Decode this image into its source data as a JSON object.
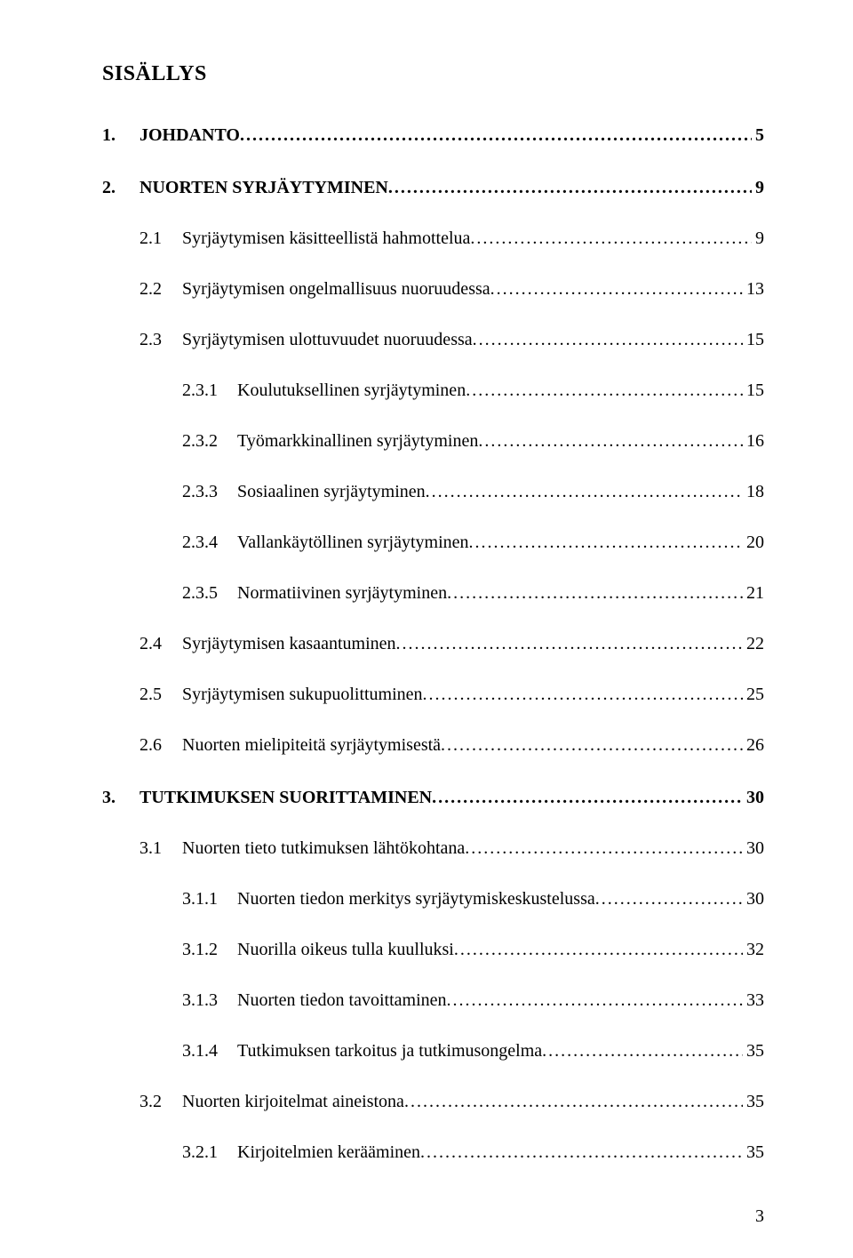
{
  "title": "SISÄLLYS",
  "pageNumber": "3",
  "entries": [
    {
      "level": 1,
      "num": "1.",
      "label": "JOHDANTO",
      "page": "5",
      "dots": true
    },
    {
      "level": 1,
      "num": "2.",
      "label": "NUORTEN SYRJÄYTYMINEN",
      "page": "9",
      "dots": true
    },
    {
      "level": 2,
      "num": "2.1",
      "label": "Syrjäytymisen käsitteellistä hahmottelua",
      "page": "9",
      "dots": true
    },
    {
      "level": 2,
      "num": "2.2",
      "label": "Syrjäytymisen ongelmallisuus nuoruudessa",
      "page": "13",
      "dots": true
    },
    {
      "level": 2,
      "num": "2.3",
      "label": "Syrjäytymisen ulottuvuudet nuoruudessa",
      "page": "15",
      "dots": true
    },
    {
      "level": 3,
      "num": "2.3.1",
      "label": "Koulutuksellinen syrjäytyminen",
      "page": "15",
      "dots": true
    },
    {
      "level": 3,
      "num": "2.3.2",
      "label": "Työmarkkinallinen syrjäytyminen",
      "page": "16",
      "dots": true
    },
    {
      "level": 3,
      "num": "2.3.3",
      "label": "Sosiaalinen syrjäytyminen",
      "page": "18",
      "dots": true
    },
    {
      "level": 3,
      "num": "2.3.4",
      "label": "Vallankäytöllinen syrjäytyminen",
      "page": "20",
      "dots": true
    },
    {
      "level": 3,
      "num": "2.3.5",
      "label": "Normatiivinen syrjäytyminen",
      "page": "21",
      "dots": true
    },
    {
      "level": 2,
      "num": "2.4",
      "label": "Syrjäytymisen kasaantuminen",
      "page": "22",
      "dots": true
    },
    {
      "level": 2,
      "num": "2.5",
      "label": "Syrjäytymisen sukupuolittuminen",
      "page": "25",
      "dots": true
    },
    {
      "level": 2,
      "num": "2.6",
      "label": "Nuorten mielipiteitä syrjäytymisestä",
      "page": "26",
      "dots": true
    },
    {
      "level": 1,
      "num": "3.",
      "label": "TUTKIMUKSEN SUORITTAMINEN",
      "page": "30",
      "dots": true
    },
    {
      "level": 2,
      "num": "3.1",
      "label": "Nuorten tieto tutkimuksen lähtökohtana",
      "page": "30",
      "dots": true
    },
    {
      "level": 3,
      "num": "3.1.1",
      "label": "Nuorten tiedon merkitys syrjäytymiskeskustelussa",
      "page": "30",
      "dots": true
    },
    {
      "level": 3,
      "num": "3.1.2",
      "label": "Nuorilla oikeus tulla kuulluksi",
      "page": "32",
      "dots": true
    },
    {
      "level": 3,
      "num": "3.1.3",
      "label": "Nuorten tiedon tavoittaminen",
      "page": "33",
      "dots": true
    },
    {
      "level": 3,
      "num": "3.1.4",
      "label": "Tutkimuksen tarkoitus ja tutkimusongelma",
      "page": "35",
      "dots": true
    },
    {
      "level": 2,
      "num": "3.2",
      "label": "Nuorten kirjoitelmat aineistona",
      "page": "35",
      "dots": true
    },
    {
      "level": 3,
      "num": "3.2.1",
      "label": "Kirjoitelmien kerääminen",
      "page": "35",
      "dots": true
    }
  ]
}
